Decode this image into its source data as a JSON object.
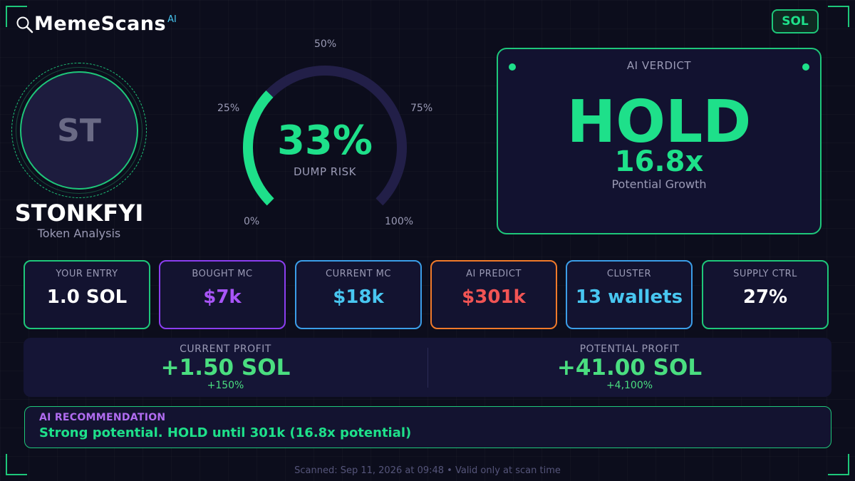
{
  "brand": {
    "name": "MemeScans",
    "superscript": "AI",
    "icon": "search-icon"
  },
  "chain_badge": "SOL",
  "token": {
    "initials": "ST",
    "name": "STONKFYI",
    "subtitle": "Token Analysis"
  },
  "dump_risk": {
    "value_text": "33%",
    "value": 33,
    "caption": "DUMP RISK",
    "scale_labels": {
      "min": "0%",
      "q1": "25%",
      "mid": "50%",
      "q3": "75%",
      "max": "100%"
    }
  },
  "verdict": {
    "title": "AI VERDICT",
    "decision": "HOLD",
    "multiplier": "16.8x",
    "multiplier_caption": "Potential Growth"
  },
  "stats": [
    {
      "label": "YOUR ENTRY",
      "value": "1.0 SOL",
      "color": "#ffffff",
      "border": "#1ec77a"
    },
    {
      "label": "BOUGHT MC",
      "value": "$7k",
      "color": "#a855f7",
      "border": "#8b3ef0"
    },
    {
      "label": "CURRENT MC",
      "value": "$18k",
      "color": "#48c6f0",
      "border": "#3b9ee8"
    },
    {
      "label": "AI PREDICT",
      "value": "$301k",
      "color": "#f05454",
      "border": "#f07a2a"
    },
    {
      "label": "CLUSTER",
      "value": "13 wallets",
      "color": "#48c6f0",
      "border": "#3b9ee8"
    },
    {
      "label": "SUPPLY CTRL",
      "value": "27%",
      "color": "#ffffff",
      "border": "#1ec77a"
    }
  ],
  "profit": {
    "current": {
      "label": "CURRENT PROFIT",
      "value": "+1.50 SOL",
      "percent": "+150%"
    },
    "potential": {
      "label": "POTENTIAL PROFIT",
      "value": "+41.00 SOL",
      "percent": "+4,100%"
    }
  },
  "recommendation": {
    "label": "AI RECOMMENDATION",
    "text": "Strong potential. HOLD until 301k (16.8x potential)"
  },
  "footer": "Scanned: Sep 11, 2026 at 09:48  •  Valid only at scan time",
  "colors": {
    "accent_green": "#1ee08a",
    "panel": "#131330",
    "background": "#0c0d1c",
    "track": "#221f48"
  }
}
